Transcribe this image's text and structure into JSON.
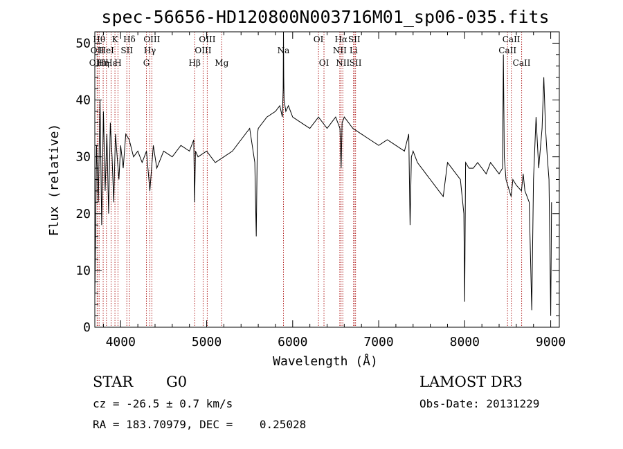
{
  "chart_data": {
    "type": "line",
    "title": "spec-56656-HD120800N003716M01_sp06-035.fits",
    "xlabel": "Wavelength (Å)",
    "ylabel": "Flux (relative)",
    "xlim": [
      3700,
      9100
    ],
    "ylim": [
      0,
      52
    ],
    "x_ticks": [
      4000,
      5000,
      6000,
      7000,
      8000,
      9000
    ],
    "y_ticks": [
      0,
      10,
      20,
      30,
      40,
      50
    ],
    "series": [
      {
        "name": "flux",
        "x": [
          3700,
          3720,
          3740,
          3760,
          3780,
          3800,
          3820,
          3840,
          3860,
          3880,
          3900,
          3920,
          3940,
          3960,
          3980,
          4000,
          4030,
          4060,
          4100,
          4150,
          4200,
          4250,
          4300,
          4340,
          4380,
          4420,
          4500,
          4600,
          4700,
          4800,
          4850,
          4860,
          4870,
          4900,
          5000,
          5100,
          5200,
          5300,
          5400,
          5500,
          5560,
          5577,
          5590,
          5600,
          5700,
          5800,
          5850,
          5880,
          5890,
          5893,
          5896,
          5900,
          5920,
          5950,
          6000,
          6100,
          6200,
          6300,
          6400,
          6500,
          6550,
          6563,
          6575,
          6600,
          6700,
          6800,
          6900,
          7000,
          7100,
          7200,
          7300,
          7350,
          7365,
          7380,
          7400,
          7450,
          7500,
          7550,
          7600,
          7650,
          7700,
          7750,
          7800,
          7850,
          7900,
          7950,
          7990,
          8000,
          8010,
          8050,
          8100,
          8150,
          8200,
          8250,
          8300,
          8350,
          8400,
          8440,
          8450,
          8460,
          8480,
          8500,
          8540,
          8560,
          8600,
          8660,
          8680,
          8700,
          8750,
          8780,
          8800,
          8830,
          8860,
          8900,
          8920,
          8940,
          8960,
          8980,
          9000,
          9010
        ],
        "values": [
          5,
          32,
          22,
          40,
          18,
          38,
          24,
          34,
          20,
          36,
          30,
          22,
          34,
          30,
          26,
          32,
          28,
          34,
          33,
          30,
          31,
          29,
          31,
          24,
          32,
          28,
          31,
          30,
          32,
          31,
          33,
          22,
          31,
          30,
          31,
          29,
          30,
          31,
          33,
          35,
          29,
          16,
          34,
          35,
          37,
          38,
          39,
          37,
          42,
          52,
          44,
          40,
          38,
          39,
          37,
          36,
          35,
          37,
          35,
          37,
          35,
          28,
          36,
          37,
          35,
          34,
          33,
          32,
          33,
          32,
          31,
          34,
          18,
          30,
          31,
          29,
          28,
          27,
          26,
          25,
          24,
          23,
          29,
          28,
          27,
          26,
          20,
          4.5,
          29,
          28,
          28,
          29,
          28,
          27,
          29,
          28,
          27,
          28,
          48,
          30,
          26,
          25,
          23,
          26,
          25,
          24,
          27,
          24,
          22,
          3,
          26,
          37,
          28,
          35,
          44,
          35,
          30,
          26,
          2,
          22
        ]
      }
    ],
    "lines": [
      {
        "wl": 3727,
        "label": "OII",
        "row": 1
      },
      {
        "wl": 3730,
        "label": "OIII",
        "row": 2
      },
      {
        "wl": 3750,
        "label": "Hθ",
        "row": 0
      },
      {
        "wl": 3797,
        "label": "Hη",
        "row": 2
      },
      {
        "wl": 3835,
        "label": "HeI",
        "row": 1
      },
      {
        "wl": 3889,
        "label": "Hε",
        "row": 2
      },
      {
        "wl": 3934,
        "label": "K",
        "row": 0
      },
      {
        "wl": 3969,
        "label": "H",
        "row": 2
      },
      {
        "wl": 4072,
        "label": "SII",
        "row": 1
      },
      {
        "wl": 4102,
        "label": "Hδ",
        "row": 0
      },
      {
        "wl": 4300,
        "label": "G",
        "row": 2
      },
      {
        "wl": 4340,
        "label": "Hγ",
        "row": 1
      },
      {
        "wl": 4363,
        "label": "OIII",
        "row": 0
      },
      {
        "wl": 4861,
        "label": "Hβ",
        "row": 2
      },
      {
        "wl": 4959,
        "label": "OIII",
        "row": 1
      },
      {
        "wl": 5007,
        "label": "OIII",
        "row": 0
      },
      {
        "wl": 5175,
        "label": "Mg",
        "row": 2
      },
      {
        "wl": 5893,
        "label": "Na",
        "row": 1
      },
      {
        "wl": 6300,
        "label": "OI",
        "row": 0
      },
      {
        "wl": 6364,
        "label": "OI",
        "row": 2
      },
      {
        "wl": 6548,
        "label": "NII",
        "row": 1
      },
      {
        "wl": 6563,
        "label": "Hα",
        "row": 0
      },
      {
        "wl": 6583,
        "label": "NII",
        "row": 2
      },
      {
        "wl": 6708,
        "label": "Li",
        "row": 1
      },
      {
        "wl": 6716,
        "label": "SII",
        "row": 0
      },
      {
        "wl": 6731,
        "label": "SII",
        "row": 2
      },
      {
        "wl": 8498,
        "label": "CaII",
        "row": 1
      },
      {
        "wl": 8542,
        "label": "CaII",
        "row": 0
      },
      {
        "wl": 8662,
        "label": "CaII",
        "row": 2
      }
    ],
    "line_color": "#b22222"
  },
  "info": {
    "class": "STAR",
    "subclass": "G0",
    "survey": "LAMOST DR3",
    "cz": "cz = -26.5 ± 0.7 km/s",
    "obs_date": "Obs-Date: 20131229",
    "coords": "RA = 183.70979, DEC =    0.25028"
  }
}
